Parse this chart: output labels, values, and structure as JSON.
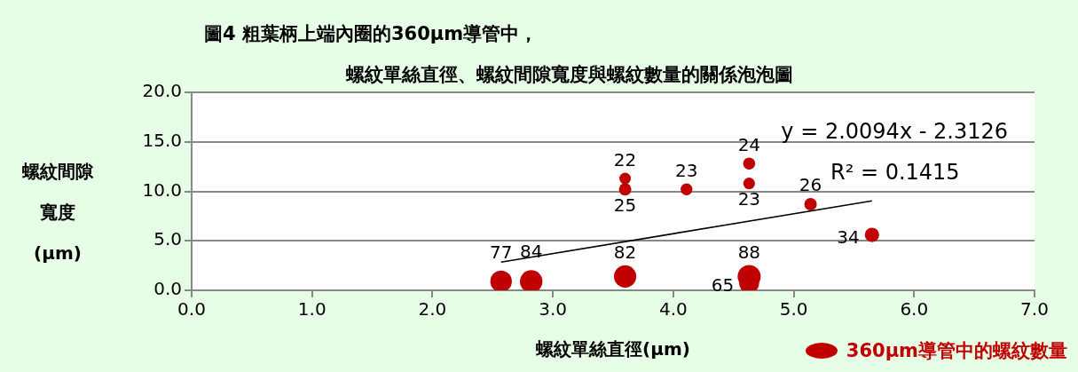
{
  "chart_data": {
    "type": "bubble",
    "title": "圖4  粗葉柄上端內圈的360μm導管中，",
    "subtitle": "螺紋單絲直徑、螺紋間隙寬度與螺紋數量的關係泡泡圖",
    "xlabel": "螺紋單絲直徑(μm)",
    "ylabel": "螺紋間隙寬度(μm)",
    "xlim": [
      0,
      7
    ],
    "xticks": [
      {
        "value": 0,
        "label": "0.0"
      },
      {
        "value": 1,
        "label": "1.0"
      },
      {
        "value": 2,
        "label": "2.0"
      },
      {
        "value": 3,
        "label": "3.0"
      },
      {
        "value": 4,
        "label": "4.0"
      },
      {
        "value": 5,
        "label": "5.0"
      },
      {
        "value": 6,
        "label": "6.0"
      },
      {
        "value": 7,
        "label": "7.0"
      }
    ],
    "ylim": [
      0,
      20
    ],
    "yticks": [
      {
        "value": 0,
        "label": "0.0"
      },
      {
        "value": 5,
        "label": "5.0"
      },
      {
        "value": 10,
        "label": "10.0"
      },
      {
        "value": 15,
        "label": "15.0"
      },
      {
        "value": 20,
        "label": "20.0"
      }
    ],
    "grid": "y",
    "legend": "bottom right",
    "series": [
      {
        "name": "360μm導管中的螺紋數量",
        "color": "#c00000",
        "x": [
          2.57,
          2.82,
          3.6,
          4.63,
          4.63,
          3.6,
          3.6,
          4.11,
          4.63,
          4.63,
          5.14,
          5.65
        ],
        "values": [
          0.9,
          0.9,
          1.4,
          1.4,
          0.7,
          11.3,
          10.2,
          10.2,
          12.8,
          10.8,
          8.7,
          5.6
        ],
        "sizes": [
          77,
          84,
          82,
          88,
          65,
          22,
          25,
          23,
          24,
          23,
          26,
          34
        ],
        "value_labels": [
          "77",
          "84",
          "82",
          "88",
          "65",
          "22",
          "25",
          "23",
          "24",
          "23",
          "26",
          "34"
        ]
      },
      {
        "type": "line",
        "color": "#000000",
        "x": [
          2.57,
          5.65
        ],
        "values": [
          2.85,
          9.04
        ]
      }
    ],
    "annotations": [
      "y = 2.0094x - 2.3126",
      "R² = 0.1415"
    ]
  }
}
